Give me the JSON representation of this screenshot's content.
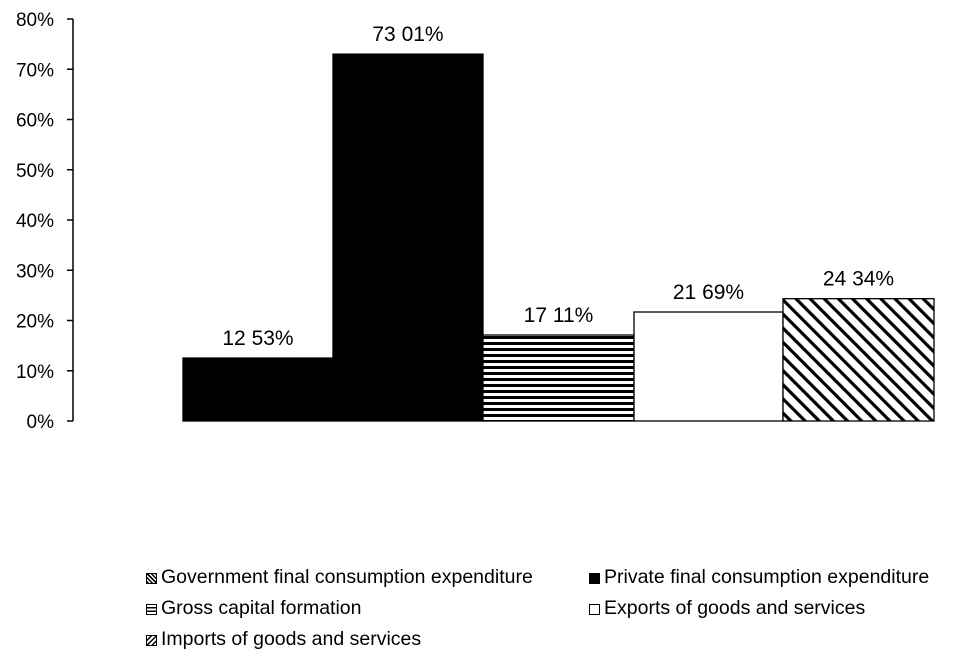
{
  "chart_data": {
    "type": "bar",
    "title": "",
    "xlabel": "",
    "ylabel": "",
    "ylim": [
      0,
      80
    ],
    "y_ticks": [
      "0%",
      "10%",
      "20%",
      "30%",
      "40%",
      "50%",
      "60%",
      "70%",
      "80%"
    ],
    "y_tick_values": [
      0,
      10,
      20,
      30,
      40,
      50,
      60,
      70,
      80
    ],
    "grid": false,
    "legend_position": "bottom",
    "series": [
      {
        "name": "Government final consumption expenditure",
        "value": 12.53,
        "label": "12 53%",
        "fill": "solid",
        "color": "#000000"
      },
      {
        "name": "Private final consumption expenditure",
        "value": 73.01,
        "label": "73 01%",
        "fill": "solid",
        "color": "#000000"
      },
      {
        "name": "Gross capital formation",
        "value": 17.11,
        "label": "17 11%",
        "fill": "horizontal-stripes",
        "color": "#000000"
      },
      {
        "name": "Exports of goods and services",
        "value": 21.69,
        "label": "21 69%",
        "fill": "white",
        "color": "#ffffff"
      },
      {
        "name": "Imports of goods and services",
        "value": 24.34,
        "label": "24 34%",
        "fill": "diagonal-stripes",
        "color": "#000000"
      }
    ]
  }
}
